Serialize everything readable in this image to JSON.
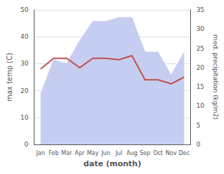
{
  "chart_data": {
    "type": "line",
    "xlabel": "date (month)",
    "ylabel": "max temp (C)",
    "y2label": "med. precipitation (kg/m2)",
    "categories": [
      "Jan",
      "Feb",
      "Mar",
      "Apr",
      "May",
      "Jun",
      "Jul",
      "Aug",
      "Sep",
      "Oct",
      "Nov",
      "Dec"
    ],
    "series": [
      {
        "type": "area",
        "color": "#c5cef0",
        "axis": "y2",
        "values": [
          13,
          22,
          21,
          27,
          32,
          32,
          33,
          33,
          24,
          24,
          18,
          24
        ]
      },
      {
        "type": "line",
        "color": "#c0504d",
        "values": [
          28,
          32,
          32,
          28.5,
          32,
          32,
          31.5,
          33,
          24,
          24,
          22.5,
          25
        ]
      }
    ],
    "ylim": [
      0,
      50
    ],
    "yticks": [
      0,
      10,
      20,
      30,
      40,
      50
    ],
    "y2lim": [
      0,
      35
    ],
    "y2ticks": [
      0,
      5,
      10,
      15,
      20,
      25,
      30,
      35
    ],
    "grid": true
  }
}
